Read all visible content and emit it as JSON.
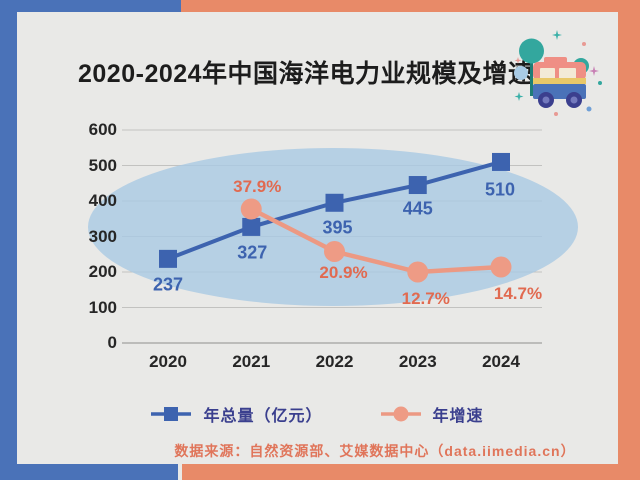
{
  "title": "2020-2024年中国海洋电力业规模及增速",
  "chart_data": {
    "type": "line",
    "categories": [
      "2020",
      "2021",
      "2022",
      "2023",
      "2024"
    ],
    "series": [
      {
        "name": "年总量（亿元）",
        "axis": "primary",
        "marker": "square",
        "values": [
          237,
          327,
          395,
          445,
          510
        ],
        "labels": [
          "237",
          "327",
          "395",
          "445",
          "510"
        ]
      },
      {
        "name": "年增速",
        "axis": "secondary",
        "marker": "circle",
        "values": [
          null,
          37.9,
          20.9,
          12.7,
          14.7
        ],
        "labels": [
          null,
          "37.9%",
          "20.9%",
          "12.7%",
          "14.7%"
        ]
      }
    ],
    "y_axis": {
      "min": 0,
      "max": 600,
      "step": 100,
      "ticks": [
        "0",
        "100",
        "200",
        "300",
        "400",
        "500",
        "600"
      ]
    },
    "grid": true,
    "legend_position": "bottom"
  },
  "legend": {
    "items": [
      {
        "label": "年总量（亿元）",
        "marker": "square"
      },
      {
        "label": "年增速",
        "marker": "circle"
      }
    ]
  },
  "source": "数据来源：自然资源部、艾媒数据中心（data.iimedia.cn）",
  "decor": {
    "icon": "toy-truck-with-trees-icon"
  },
  "colors": {
    "frame_blue": "#4a72b8",
    "frame_orange": "#e88a68",
    "background": "#e9e9e7",
    "ellipse": "#a9c9e4",
    "series_blue": "#3d63af",
    "series_orange": "#ec9983",
    "orange_label": "#e16a50",
    "legend_text": "#3a3f8e",
    "source_text": "#e0755a",
    "gridline": "#c2c2c0",
    "axis_line": "#aeaeac"
  }
}
